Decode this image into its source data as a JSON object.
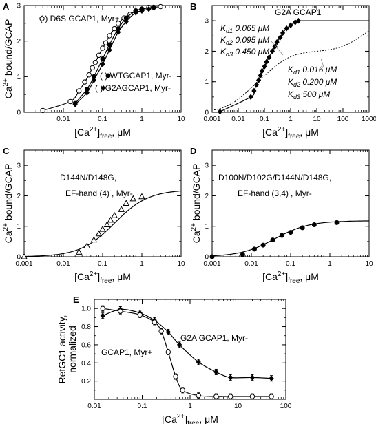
{
  "chart_data": [
    {
      "panel": "A",
      "type": "line",
      "xscale": "log",
      "xlim": [
        0.001,
        10
      ],
      "ylim": [
        0,
        3
      ],
      "xticks": [
        "0.01",
        "0.1",
        "1",
        "10"
      ],
      "yticks": [
        "0",
        "1",
        "2",
        "3"
      ],
      "xlabel": {
        "main": "[Ca",
        "sup": "2+",
        "close": "]",
        "sub": "free",
        "unit": ", μM"
      },
      "ylabel": {
        "main": "Ca",
        "sup": "2+",
        "rest": " bound/GCAP"
      },
      "legend": [
        {
          "marker": "open-circle",
          "text": "D6S GCAP1, Myr+"
        },
        {
          "marker": "filled-circle",
          "text": "WTGCAP1, Myr-"
        },
        {
          "marker": "filled-diamond",
          "text": "G2AGCAP1, Myr-"
        }
      ],
      "series": [
        {
          "name": "D6S GCAP1, Myr+",
          "marker": "open-circle",
          "x": [
            0.003,
            0.015,
            0.025,
            0.035,
            0.045,
            0.055,
            0.065,
            0.08,
            0.1,
            0.12,
            0.15,
            0.2,
            0.25,
            0.35,
            0.5,
            0.7,
            1.0,
            1.5,
            2.0,
            3.0
          ],
          "y": [
            0.05,
            0.3,
            0.6,
            0.85,
            1.05,
            1.25,
            1.4,
            1.6,
            1.8,
            1.95,
            2.15,
            2.35,
            2.5,
            2.65,
            2.75,
            2.85,
            2.9,
            2.95,
            2.95,
            2.97
          ]
        },
        {
          "name": "WTGCAP1, Myr-",
          "marker": "filled-circle",
          "x": [
            0.02,
            0.04,
            0.06,
            0.1,
            0.15,
            0.25,
            0.4,
            0.7,
            1.0,
            2.0
          ],
          "y": [
            0.25,
            0.65,
            1.0,
            1.5,
            1.9,
            2.35,
            2.65,
            2.85,
            2.9,
            2.95
          ]
        },
        {
          "name": "G2AGCAP1, Myr-",
          "marker": "filled-diamond",
          "x": [
            0.02,
            0.04,
            0.06,
            0.1,
            0.15,
            0.25,
            0.4,
            0.7,
            1.0,
            1.5,
            2.0
          ],
          "y": [
            0.22,
            0.55,
            0.9,
            1.35,
            1.75,
            2.25,
            2.55,
            2.8,
            2.85,
            2.9,
            2.95
          ]
        }
      ]
    },
    {
      "panel": "B",
      "type": "line",
      "xscale": "log",
      "xlim": [
        0.001,
        1000
      ],
      "ylim": [
        0,
        3.5
      ],
      "xticks": [
        "0.001",
        "0.01",
        "0.1",
        "1",
        "10",
        "100",
        "1000"
      ],
      "yticks": [
        "0",
        "1",
        "2",
        "3"
      ],
      "xlabel": {
        "main": "[Ca",
        "sup": "2+",
        "close": "]",
        "sub": "free",
        "unit": ", μM"
      },
      "title": "G2A GCAP1",
      "annotations": {
        "upper": [
          {
            "k": "K",
            "sub": "d1",
            "val": " 0.065 μM"
          },
          {
            "k": "K",
            "sub": "d2",
            "val": " 0.095 μM"
          },
          {
            "k": "K",
            "sub": "d3",
            "val": " 0.450 μM"
          }
        ],
        "lower": [
          {
            "k": "K",
            "sub": "d1",
            "val": " 0.016 μM"
          },
          {
            "k": "K",
            "sub": "d2",
            "val": " 0.200 μM"
          },
          {
            "k": "K",
            "sub": "d3",
            "val": " 500  μM"
          }
        ]
      },
      "series": [
        {
          "name": "G2A GCAP1",
          "marker": "filled-diamond",
          "x": [
            0.002,
            0.03,
            0.04,
            0.05,
            0.06,
            0.07,
            0.08,
            0.1,
            0.12,
            0.15,
            0.2,
            0.25,
            0.3,
            0.4,
            0.5,
            0.7,
            1.0,
            1.5,
            2.0
          ],
          "y": [
            0.02,
            0.5,
            0.7,
            0.9,
            1.05,
            1.2,
            1.35,
            1.5,
            1.65,
            1.8,
            2.0,
            2.15,
            2.3,
            2.45,
            2.6,
            2.75,
            2.85,
            2.95,
            3.0
          ]
        }
      ]
    },
    {
      "panel": "C",
      "type": "line",
      "xscale": "log",
      "xlim": [
        0.001,
        10
      ],
      "ylim": [
        0,
        3.5
      ],
      "xticks": [
        "0.001",
        "0.01",
        "0.1",
        "1",
        "10"
      ],
      "yticks": [
        "0",
        "1",
        "2",
        "3"
      ],
      "xlabel": {
        "main": "[Ca",
        "sup": "2+",
        "close": "]",
        "sub": "free",
        "unit": ", μM"
      },
      "ylabel": {
        "main": "Ca",
        "sup": "2+",
        "rest": " bound/GCAP"
      },
      "title_lines": [
        "D144N/D148G,",
        "EF-hand (4)",
        "-",
        ", Myr-"
      ],
      "series": [
        {
          "name": "D144N/D148G",
          "marker": "open-triangle",
          "x": [
            0.001,
            0.025,
            0.04,
            0.06,
            0.08,
            0.1,
            0.13,
            0.16,
            0.2,
            0.3,
            0.4,
            0.6,
            1.0
          ],
          "y": [
            0.0,
            0.15,
            0.35,
            0.55,
            0.75,
            0.9,
            1.05,
            1.2,
            1.35,
            1.55,
            1.75,
            1.9,
            1.97
          ]
        }
      ]
    },
    {
      "panel": "D",
      "type": "line",
      "xscale": "log",
      "xlim": [
        0.001,
        10
      ],
      "ylim": [
        0,
        3.5
      ],
      "xticks": [
        "0.001",
        "0.01",
        "0.1",
        "1",
        "10"
      ],
      "yticks": [
        "0",
        "1",
        "2",
        "3"
      ],
      "xlabel": {
        "main": "[Ca",
        "sup": "2+",
        "close": "]",
        "sub": "free",
        "unit": ", μM"
      },
      "ylabel": {
        "main": "Ca",
        "sup": "2+",
        "rest": " bound/GCAP"
      },
      "title_lines": [
        "D100N/D102G/D144N/D148G,",
        "EF-hand (3,4)",
        "-",
        ", Myr-"
      ],
      "series": [
        {
          "name": "D100N/D102G/D144N/D148G",
          "marker": "filled-circle",
          "x": [
            0.001,
            0.006,
            0.012,
            0.02,
            0.035,
            0.06,
            0.1,
            0.2,
            0.4,
            1.5
          ],
          "y": [
            0.0,
            0.07,
            0.25,
            0.38,
            0.55,
            0.7,
            0.8,
            0.95,
            1.05,
            1.12
          ]
        }
      ]
    },
    {
      "panel": "E",
      "type": "line",
      "xscale": "log",
      "xlim": [
        0.01,
        100
      ],
      "ylim": [
        0,
        1.1
      ],
      "xticks": [
        "0.01",
        "0.1",
        "1",
        "10",
        "100"
      ],
      "yticks": [
        "0.2",
        "0.4",
        "0.6",
        "0.8",
        "1.0"
      ],
      "xlabel": {
        "main": "[Ca",
        "sup": "2+",
        "close": "]",
        "sub": "free",
        "unit": ", μM"
      },
      "ylabel_lines": [
        "RetGC1 activity,",
        "normalized"
      ],
      "series": [
        {
          "name": "G2A GCAP1, Myr-",
          "marker": "filled-diamond",
          "x": [
            0.015,
            0.035,
            0.09,
            0.18,
            0.35,
            0.6,
            1.5,
            3.5,
            7,
            20,
            50
          ],
          "y": [
            0.92,
            0.99,
            0.95,
            0.87,
            0.74,
            0.6,
            0.41,
            0.3,
            0.24,
            0.24,
            0.23
          ]
        },
        {
          "name": "GCAP1, Myr+",
          "marker": "open-circle",
          "x": [
            0.015,
            0.035,
            0.09,
            0.18,
            0.25,
            0.35,
            0.5,
            0.7,
            1.5,
            3.5,
            7,
            20,
            50
          ],
          "y": [
            1.0,
            0.97,
            0.93,
            0.85,
            0.75,
            0.52,
            0.25,
            0.1,
            0.04,
            0.03,
            0.03,
            0.03,
            0.03
          ]
        }
      ],
      "labels": [
        "G2A GCAP1, Myr-",
        "GCAP1, Myr+"
      ]
    }
  ]
}
